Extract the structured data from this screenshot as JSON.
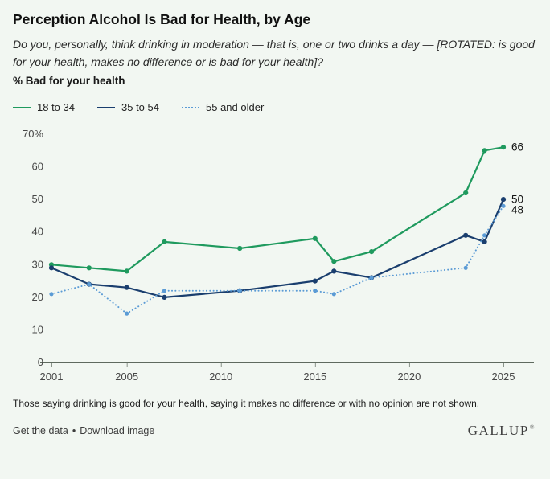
{
  "header": {
    "title": "Perception Alcohol Is Bad for Health, by Age",
    "question": "Do you, personally, think drinking in moderation — that is, one or two drinks a day — [ROTATED: is good for your health, makes no difference or is bad for your health]?",
    "measure_label": "% Bad for your health"
  },
  "chart_data": {
    "type": "line",
    "x": [
      2001,
      2003,
      2005,
      2007,
      2011,
      2015,
      2016,
      2018,
      2023,
      2024,
      2025
    ],
    "series": [
      {
        "name": "18 to 34",
        "color": "#1f9a5e",
        "style": "solid",
        "values": [
          30,
          29,
          28,
          37,
          35,
          38,
          31,
          34,
          52,
          65,
          66
        ]
      },
      {
        "name": "35 to 54",
        "color": "#1a3e6e",
        "style": "solid",
        "values": [
          29,
          24,
          23,
          20,
          22,
          25,
          28,
          26,
          39,
          37,
          50
        ]
      },
      {
        "name": "55 and older",
        "color": "#5b9bd5",
        "style": "dotted",
        "values": [
          21,
          24,
          15,
          22,
          22,
          22,
          21,
          26,
          29,
          39,
          48
        ]
      }
    ],
    "end_labels": [
      "66",
      "50",
      "48"
    ],
    "xticks": [
      2001,
      2005,
      2010,
      2015,
      2020,
      2025
    ],
    "yticks": [
      0,
      10,
      20,
      30,
      40,
      50,
      60,
      70
    ],
    "ytick_labels": [
      "0",
      "10",
      "20",
      "30",
      "40",
      "50",
      "60",
      "70%"
    ],
    "xlim": [
      2001,
      2025
    ],
    "ylim": [
      0,
      70
    ],
    "grid": false,
    "legend_position": "top"
  },
  "footer": {
    "note": "Those saying drinking is good for your health, saying it makes no difference or with no opinion are not shown.",
    "get_data_label": "Get the data",
    "separator": "•",
    "download_label": "Download image",
    "brand": "GALLUP",
    "brand_mark": "®"
  }
}
